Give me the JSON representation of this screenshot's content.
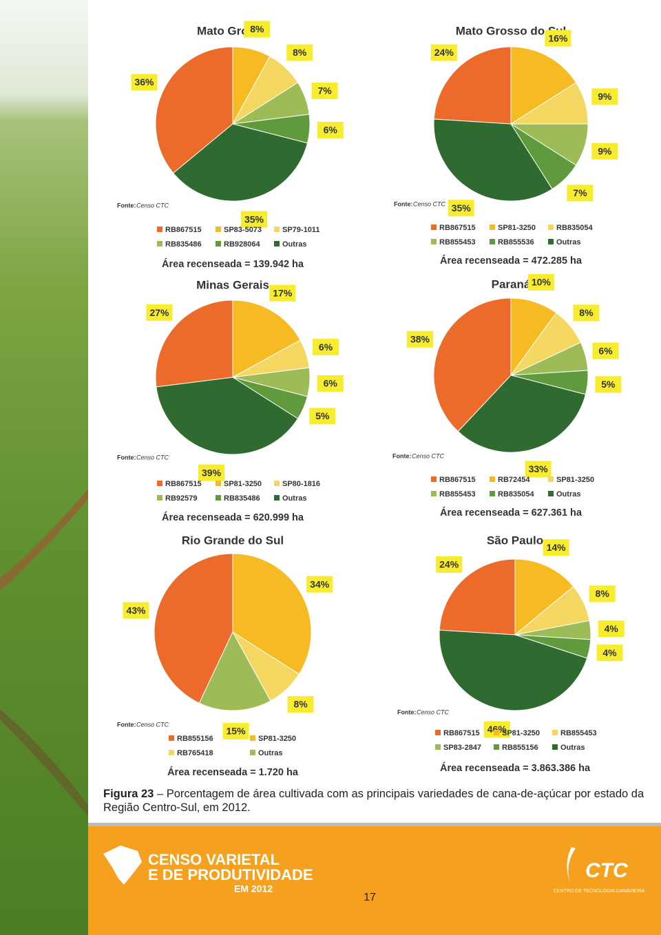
{
  "chart_data": [
    {
      "type": "pie",
      "title": "Mato Grosso",
      "source_label": "Fonte:",
      "source": "Censo CTC",
      "categories": [
        "RB867515",
        "SP83-5073",
        "SP79-1011",
        "RB835486",
        "RB928064",
        "Outras"
      ],
      "values": [
        36,
        8,
        8,
        7,
        6,
        35
      ],
      "value_labels": [
        "36%",
        "8%",
        "8%",
        "7%",
        "6%",
        "35%"
      ],
      "colors": [
        "#ec6b2a",
        "#f6bb22",
        "#f3d761",
        "#9dbb57",
        "#5f9a3c",
        "#2f6a31"
      ],
      "note": "Área recenseada = 139.942 ha"
    },
    {
      "type": "pie",
      "title": "Mato Grosso do Sul",
      "source_label": "Fonte:",
      "source": "Censo CTC",
      "categories": [
        "RB867515",
        "SP81-3250",
        "RB835054",
        "RB855453",
        "RB855536",
        "Outras"
      ],
      "values": [
        24,
        16,
        9,
        9,
        7,
        35
      ],
      "value_labels": [
        "24%",
        "16%",
        "9%",
        "9%",
        "7%",
        "35%"
      ],
      "colors": [
        "#ec6b2a",
        "#f6bb22",
        "#f3d761",
        "#9dbb57",
        "#5f9a3c",
        "#2f6a31"
      ],
      "note": "Área recenseada = 472.285 ha"
    },
    {
      "type": "pie",
      "title": "Minas Gerais",
      "source_label": "Fonte:",
      "source": "Censo CTC",
      "categories": [
        "RB867515",
        "SP81-3250",
        "SP80-1816",
        "RB92579",
        "RB835486",
        "Outras"
      ],
      "values": [
        27,
        17,
        6,
        6,
        5,
        39
      ],
      "value_labels": [
        "27%",
        "17%",
        "6%",
        "6%",
        "5%",
        "39%"
      ],
      "colors": [
        "#ec6b2a",
        "#f6bb22",
        "#f3d761",
        "#9dbb57",
        "#5f9a3c",
        "#2f6a31"
      ],
      "note": "Área recenseada = 620.999 ha"
    },
    {
      "type": "pie",
      "title": "Paraná",
      "source_label": "Fonte:",
      "source": "Censo CTC",
      "categories": [
        "RB867515",
        "RB72454",
        "SP81-3250",
        "RB855453",
        "RB835054",
        "Outras"
      ],
      "values": [
        38,
        10,
        8,
        6,
        5,
        33
      ],
      "value_labels": [
        "38%",
        "10%",
        "8%",
        "6%",
        "5%",
        "33%"
      ],
      "colors": [
        "#ec6b2a",
        "#f6bb22",
        "#f3d761",
        "#9dbb57",
        "#5f9a3c",
        "#2f6a31"
      ],
      "note": "Área recenseada = 627.361 ha"
    },
    {
      "type": "pie",
      "title": "Rio Grande do Sul",
      "source_label": "Fonte:",
      "source": "Censo CTC",
      "categories": [
        "RB855156",
        "SP81-3250",
        "RB765418",
        "Outras"
      ],
      "values": [
        43,
        34,
        8,
        15
      ],
      "value_labels": [
        "43%",
        "34%",
        "8%",
        "15%"
      ],
      "colors": [
        "#ec6b2a",
        "#f6bb22",
        "#f3d761",
        "#9dbb57"
      ],
      "note": "Área recenseada = 1.720 ha"
    },
    {
      "type": "pie",
      "title": "São Paulo",
      "source_label": "Fonte:",
      "source": "Censo CTC",
      "categories": [
        "RB867515",
        "SP81-3250",
        "RB855453",
        "SP83-2847",
        "RB855156",
        "Outras"
      ],
      "values": [
        24,
        14,
        8,
        4,
        4,
        46
      ],
      "value_labels": [
        "24%",
        "14%",
        "8%",
        "4%",
        "4%",
        "46%"
      ],
      "colors": [
        "#ec6b2a",
        "#f6bb22",
        "#f3d761",
        "#9dbb57",
        "#5f9a3c",
        "#2f6a31"
      ],
      "note": "Área recenseada = 3.863.386 ha"
    }
  ],
  "caption": {
    "label": "Figura 23",
    "text": "– Porcentagem de área cultivada com as principais variedades de cana-de-açúcar por estado da Região Centro-Sul, em 2012."
  },
  "footer": {
    "brand_line1": "CENSO VARIETAL",
    "brand_line2": "E DE PRODUTIVIDADE",
    "brand_year": "EM 2012",
    "page": "17",
    "logo": "CTC",
    "logo_sub": "CENTRO DE TECNOLOGIA CANAVIEIRA"
  }
}
